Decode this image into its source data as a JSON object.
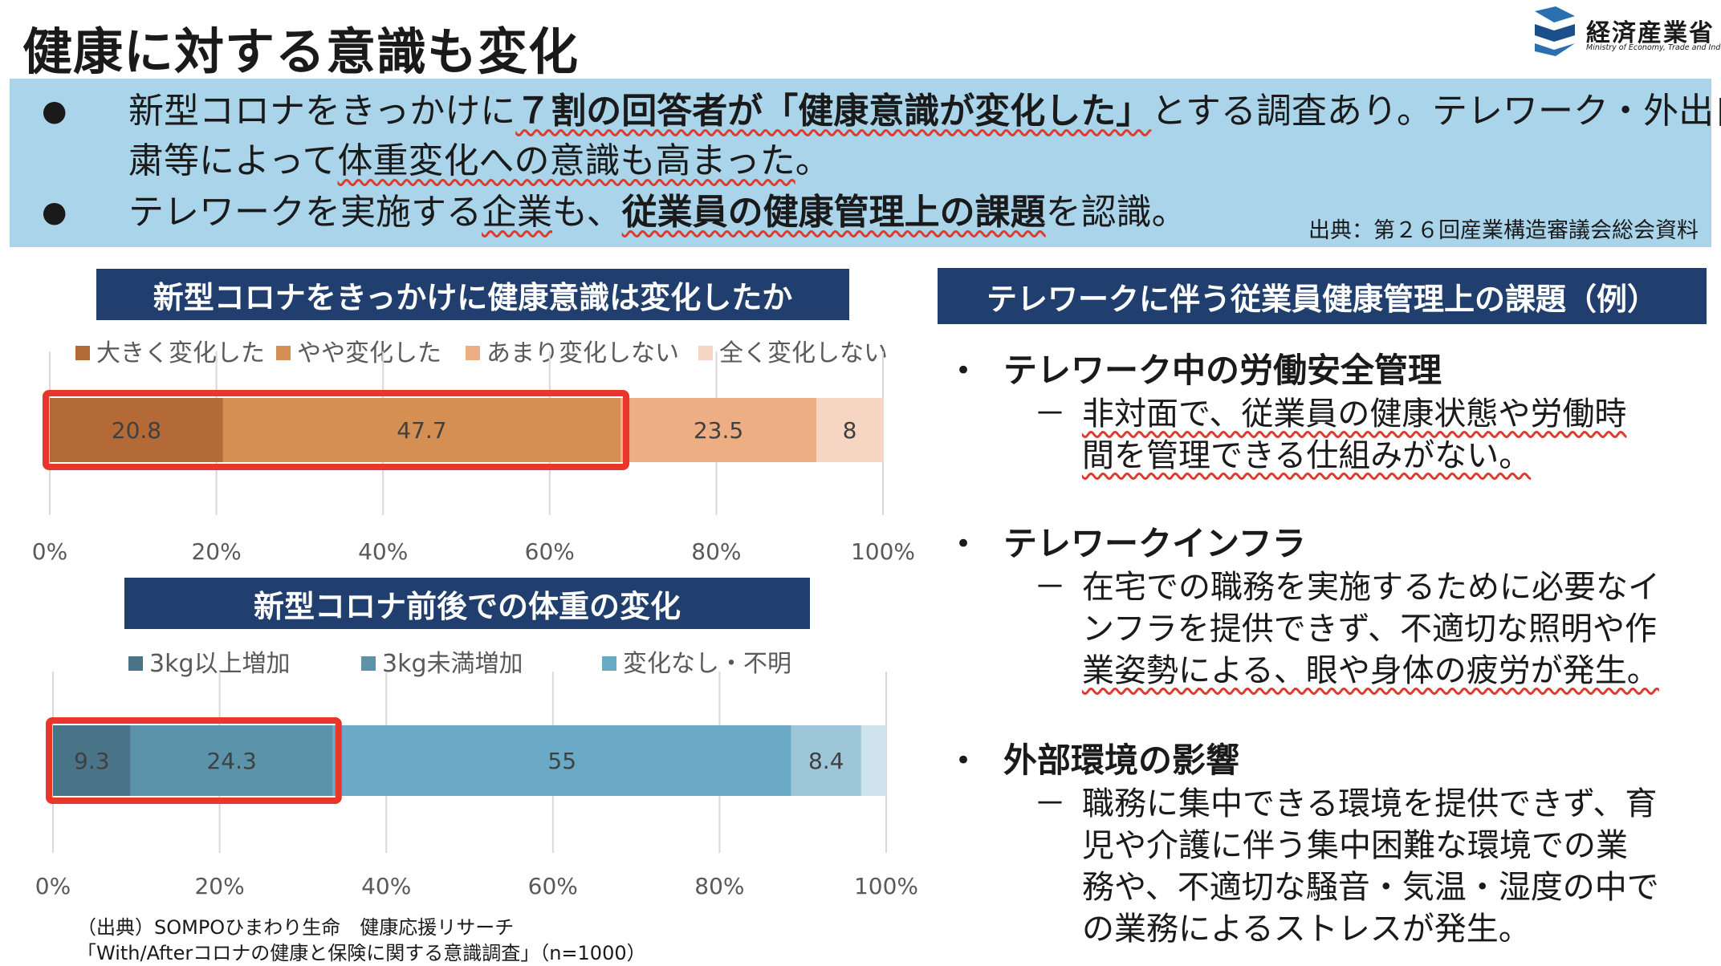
{
  "page_title": "健康に対する意識も変化",
  "logo": {
    "jp": "経済産業省",
    "en": "Ministry of Economy, Trade and Industry"
  },
  "summary": {
    "bullet1": {
      "seg1": "新型コロナをきっかけに",
      "seg2": "７割の回答者が「健康意識が変化した」",
      "seg3": "とする調査あり。テレワーク・外出自",
      "line2_seg1": "粛等によって",
      "line2_seg2": "体重変化への意識も高まった",
      "line2_seg3": "。"
    },
    "bullet2": {
      "seg1": "テレワークを実施する",
      "seg2": "企業",
      "seg3": "も、",
      "seg4": "従業員の健康管理上の課題",
      "seg5": "を認識。"
    },
    "source": "出典：第２６回産業構造審議会総会資料"
  },
  "chart_data": [
    {
      "type": "bar",
      "orientation": "horizontal-stacked-100",
      "title": "新型コロナをきっかけに健康意識は変化したか",
      "categories": [
        ""
      ],
      "series": [
        {
          "name": "大きく変化した",
          "values": [
            20.8
          ],
          "color": "#b36a36",
          "label": "20.8"
        },
        {
          "name": "やや変化した",
          "values": [
            47.7
          ],
          "color": "#d68f52",
          "label": "47.7"
        },
        {
          "name": "あまり変化しない",
          "values": [
            23.5
          ],
          "color": "#edae83",
          "label": "23.5"
        },
        {
          "name": "全く変化しない",
          "values": [
            8
          ],
          "color": "#f6d5c2",
          "label": "8"
        }
      ],
      "xticks": [
        "0%",
        "20%",
        "40%",
        "60%",
        "80%",
        "100%"
      ],
      "xlim": [
        0,
        100
      ],
      "legend_position": "top",
      "highlight_series": [
        "大きく変化した",
        "やや変化した"
      ]
    },
    {
      "type": "bar",
      "orientation": "horizontal-stacked-100",
      "title": "新型コロナ前後での体重の変化",
      "categories": [
        ""
      ],
      "series": [
        {
          "name": "3kg以上増加",
          "values": [
            9.3
          ],
          "color": "#4a7488",
          "label": "9.3"
        },
        {
          "name": "3kg未満増加",
          "values": [
            24.3
          ],
          "color": "#5b93ab",
          "label": "24.3"
        },
        {
          "name": "変化なし・不明",
          "values": [
            55
          ],
          "color": "#6aaac6",
          "label": "55"
        },
        {
          "name": "",
          "values": [
            8.4
          ],
          "color": "#9dc6d9",
          "label": "8.4"
        },
        {
          "name": "",
          "values": [
            3
          ],
          "color": "#cfe3ed",
          "label": ""
        }
      ],
      "xticks": [
        "0%",
        "20%",
        "40%",
        "60%",
        "80%",
        "100%"
      ],
      "xlim": [
        0,
        100
      ],
      "legend_position": "top",
      "highlight_series": [
        "3kg以上増加",
        "3kg未満増加"
      ]
    }
  ],
  "right_panel": {
    "title": "テレワークに伴う従業員健康管理上の課題（例）",
    "items": [
      {
        "bullet": "•",
        "title": "テレワーク中の労働安全管理",
        "dash": "－",
        "lines": [
          "非対面で、従業員の健康状態や労働時",
          "間を管理できる仕組みがない。"
        ]
      },
      {
        "bullet": "•",
        "title": "テレワークインフラ",
        "dash": "－",
        "lines": [
          "在宅での職務を実施するために必要なイ",
          "ンフラを提供できず、不適切な照明や作",
          "業姿勢による、眼や身体の疲労が発生。"
        ]
      },
      {
        "bullet": "•",
        "title": "外部環境の影響",
        "dash": "－",
        "lines": [
          "職務に集中できる環境を提供できず、育",
          "児や介護に伴う集中困難な環境での業",
          "務や、不適切な騒音・気温・湿度の中で",
          "の業務によるストレスが発生。"
        ]
      }
    ]
  },
  "source_bottom": {
    "line1": "（出典）SOMPOひまわり生命　健康応援リサーチ",
    "line2": "「With/Afterコロナの健康と保険に関する意識調査」（n=1000）"
  },
  "bullet_symbol": "●",
  "colors": {
    "banner": "#213f6e",
    "summary_bg": "#a9d4ea",
    "highlight_box": "#e8372a",
    "wavy_underline": "#e03a2a"
  }
}
